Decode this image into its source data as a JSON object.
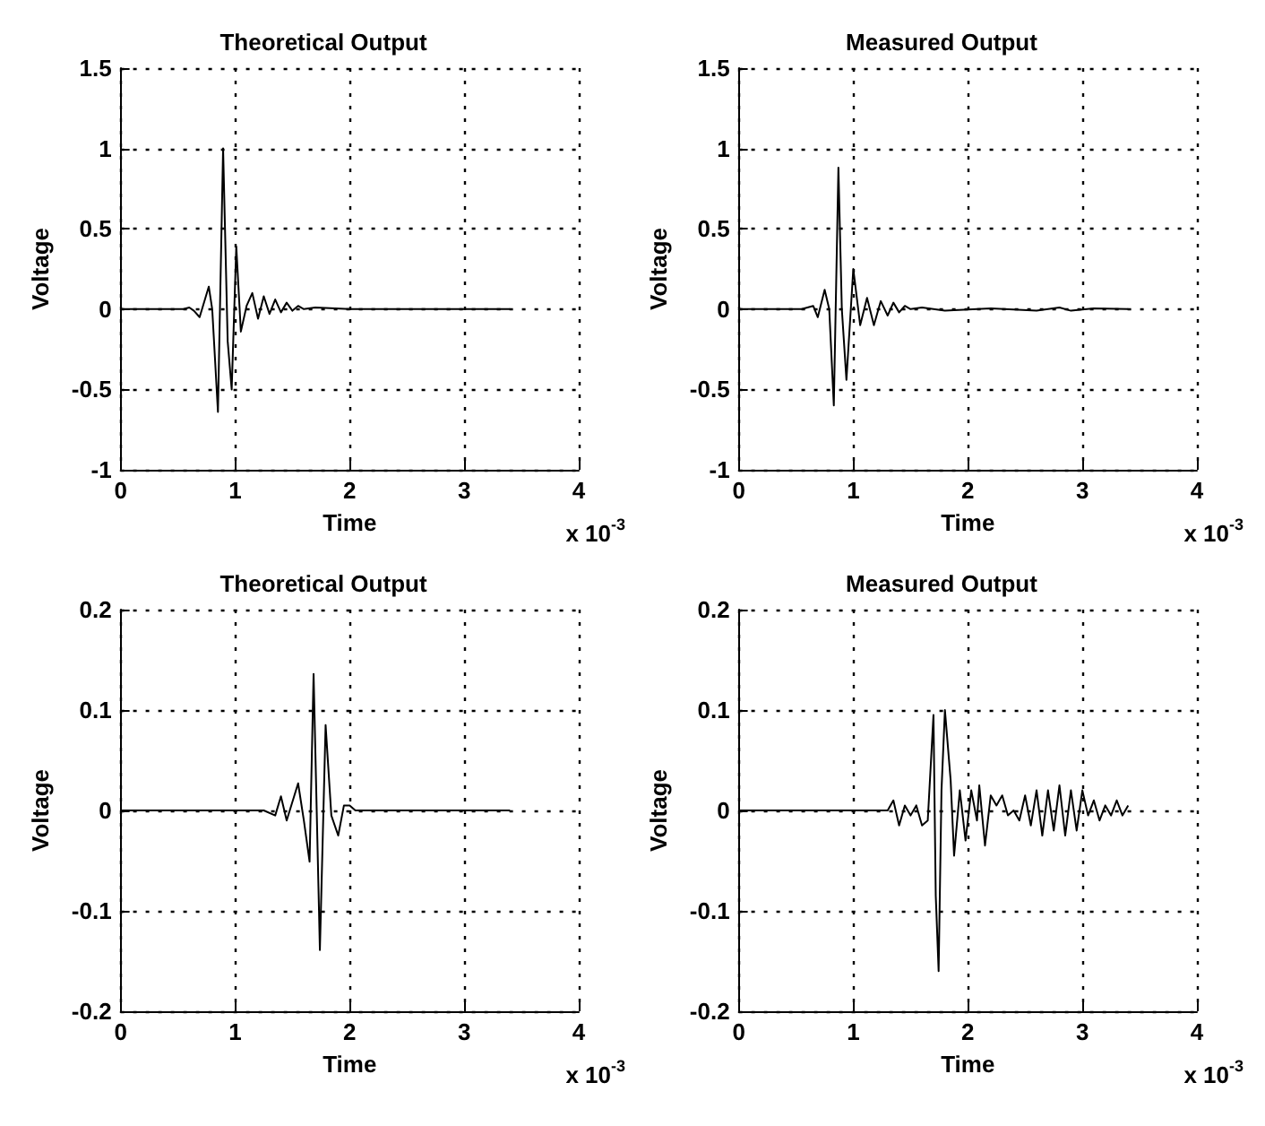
{
  "chart_data": [
    {
      "type": "line",
      "title": "Theoretical Output",
      "xlabel": "Time",
      "ylabel": "Voltage",
      "annotations": [
        "x 10$^{-3}$"
      ],
      "xlim": [
        0,
        4
      ],
      "xticks": [
        0,
        1,
        2,
        3,
        4
      ],
      "ylim": [
        -1,
        1.5
      ],
      "yticks": [
        -1,
        -0.5,
        0,
        0.5,
        1,
        1.5
      ],
      "grid": true,
      "marker": "none",
      "line_style": "solid",
      "series": [
        {
          "color": "#000000",
          "x": [
            0,
            0.55,
            0.6,
            0.64,
            0.69,
            0.77,
            0.8,
            0.85,
            0.895,
            0.935,
            0.97,
            1.01,
            1.05,
            1.1,
            1.15,
            1.2,
            1.25,
            1.3,
            1.35,
            1.4,
            1.45,
            1.5,
            1.55,
            1.6,
            1.7,
            2.0,
            3.4
          ],
          "values": [
            0,
            0,
            0.01,
            -0.01,
            -0.05,
            0.14,
            0.0,
            -0.64,
            1.0,
            -0.2,
            -0.5,
            0.39,
            -0.14,
            0.02,
            0.1,
            -0.06,
            0.08,
            -0.03,
            0.06,
            -0.02,
            0.04,
            -0.01,
            0.02,
            0,
            0.01,
            0,
            0
          ]
        }
      ]
    },
    {
      "type": "line",
      "title": "Measured Output",
      "xlabel": "Time",
      "ylabel": "Voltage",
      "annotations": [
        "x 10$^{-3}$"
      ],
      "xlim": [
        0,
        4
      ],
      "xticks": [
        0,
        1,
        2,
        3,
        4
      ],
      "ylim": [
        -1,
        1.5
      ],
      "yticks": [
        -1,
        -0.5,
        0,
        0.5,
        1,
        1.5
      ],
      "grid": true,
      "marker": "none",
      "line_style": "solid",
      "series": [
        {
          "color": "#000000",
          "x": [
            0,
            0.55,
            0.6,
            0.65,
            0.69,
            0.75,
            0.79,
            0.83,
            0.87,
            0.9,
            0.94,
            1.0,
            1.06,
            1.12,
            1.18,
            1.24,
            1.3,
            1.35,
            1.4,
            1.45,
            1.5,
            1.6,
            1.8,
            2.2,
            2.6,
            2.8,
            2.9,
            3.1,
            3.4
          ],
          "values": [
            0,
            0,
            0.01,
            0.02,
            -0.05,
            0.12,
            0.0,
            -0.6,
            0.88,
            0.0,
            -0.44,
            0.25,
            -0.1,
            0.07,
            -0.1,
            0.05,
            -0.04,
            0.04,
            -0.02,
            0.02,
            0,
            0.01,
            -0.01,
            0.005,
            -0.01,
            0.01,
            -0.01,
            0.005,
            0
          ]
        }
      ]
    },
    {
      "type": "line",
      "title": "Theoretical Output",
      "xlabel": "Time",
      "ylabel": "Voltage",
      "annotations": [
        "x 10$^{-3}$"
      ],
      "xlim": [
        0,
        4
      ],
      "xticks": [
        0,
        1,
        2,
        3,
        4
      ],
      "ylim": [
        -0.2,
        0.2
      ],
      "yticks": [
        -0.2,
        -0.1,
        0,
        0.1,
        0.2
      ],
      "grid": true,
      "marker": "none",
      "line_style": "solid",
      "series": [
        {
          "color": "#000000",
          "x": [
            0,
            1.25,
            1.35,
            1.4,
            1.45,
            1.55,
            1.6,
            1.65,
            1.685,
            1.74,
            1.79,
            1.84,
            1.9,
            1.95,
            2.0,
            2.05,
            3.4
          ],
          "values": [
            0,
            0,
            -0.005,
            0.014,
            -0.01,
            0.027,
            -0.01,
            -0.051,
            0.136,
            -0.139,
            0.085,
            -0.005,
            -0.025,
            0.005,
            0.005,
            0,
            0
          ]
        }
      ]
    },
    {
      "type": "line",
      "title": "Measured Output",
      "xlabel": "Time",
      "ylabel": "Voltage",
      "annotations": [
        "x 10$^{-3}$"
      ],
      "xlim": [
        0,
        4
      ],
      "xticks": [
        0,
        1,
        2,
        3,
        4
      ],
      "ylim": [
        -0.2,
        0.2
      ],
      "yticks": [
        -0.2,
        -0.1,
        0,
        0.1,
        0.2
      ],
      "grid": true,
      "marker": "none",
      "line_style": "solid",
      "series": [
        {
          "color": "#000000",
          "x": [
            0,
            1.3,
            1.35,
            1.4,
            1.45,
            1.5,
            1.55,
            1.6,
            1.65,
            1.7,
            1.72,
            1.745,
            1.77,
            1.8,
            1.85,
            1.88,
            1.93,
            1.98,
            2.03,
            2.08,
            2.1,
            2.15,
            2.2,
            2.25,
            2.3,
            2.35,
            2.4,
            2.45,
            2.5,
            2.55,
            2.6,
            2.65,
            2.7,
            2.75,
            2.8,
            2.85,
            2.9,
            2.95,
            3.0,
            3.05,
            3.1,
            3.15,
            3.2,
            3.25,
            3.3,
            3.35,
            3.4
          ],
          "values": [
            0,
            0,
            0.01,
            -0.015,
            0.005,
            -0.005,
            0.005,
            -0.015,
            -0.01,
            0.095,
            -0.085,
            -0.16,
            0.02,
            0.1,
            0.03,
            -0.045,
            0.02,
            -0.03,
            0.02,
            -0.01,
            0.025,
            -0.035,
            0.015,
            0.005,
            0.015,
            -0.005,
            0,
            -0.01,
            0.015,
            -0.015,
            0.02,
            -0.025,
            0.02,
            -0.02,
            0.025,
            -0.025,
            0.02,
            -0.02,
            0.02,
            -0.005,
            0.01,
            -0.01,
            0.005,
            -0.005,
            0.01,
            -0.005,
            0.005
          ]
        }
      ]
    }
  ]
}
